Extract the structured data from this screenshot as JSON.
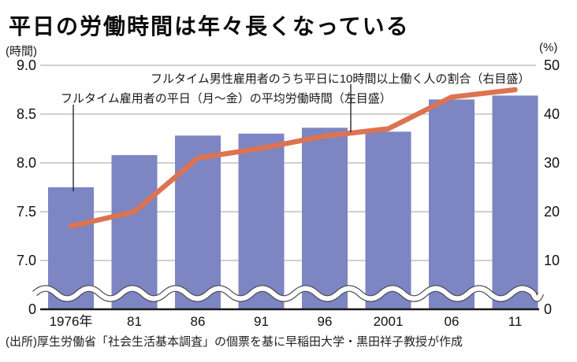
{
  "page": {
    "background": "#ffffff",
    "source": "(出所)厚生労働省「社会生活基本調査」の個票を基に早稲田大学・黒田祥子教授が作成"
  },
  "chart_data": {
    "type": "bar",
    "title": "平日の労働時間は年々長くなっている",
    "categories": [
      "1976年",
      "81",
      "86",
      "91",
      "96",
      "2001",
      "06",
      "11"
    ],
    "series": [
      {
        "name": "フルタイム雇用者の平日（月～金）の平均労働時間（左目盛）",
        "type": "bar",
        "axis": "left",
        "color": "#7d85c3",
        "values": [
          7.75,
          8.08,
          8.28,
          8.3,
          8.36,
          8.32,
          8.65,
          8.69
        ]
      },
      {
        "name": "フルタイム男性雇用者のうち平日に10時間以上働く人の割合（右目盛）",
        "type": "line",
        "axis": "right",
        "color": "#dc7351",
        "values": [
          17,
          20,
          31,
          33,
          35.5,
          37,
          43.5,
          45
        ]
      }
    ],
    "left_axis": {
      "unit": "(時間)",
      "ticks": [
        "9.0",
        "8.5",
        "8.0",
        "7.5",
        "7.0",
        "0"
      ],
      "tick_values": [
        9.0,
        8.5,
        8.0,
        7.5,
        7.0,
        0
      ],
      "range_shown": [
        7.0,
        9.0
      ],
      "axis_break": true
    },
    "right_axis": {
      "unit": "(%)",
      "ticks": [
        "50",
        "40",
        "30",
        "20",
        "10",
        "0"
      ],
      "tick_values": [
        50,
        40,
        30,
        20,
        10,
        0
      ],
      "range": [
        0,
        50
      ]
    },
    "grid": true,
    "legend_position": "inline-labels-with-leader-lines",
    "colors": {
      "grid": "#b3b3b3",
      "axis": "#1a1a1a",
      "wave_outline": "#4a4a52",
      "wave_fill": "#ffffff"
    }
  }
}
